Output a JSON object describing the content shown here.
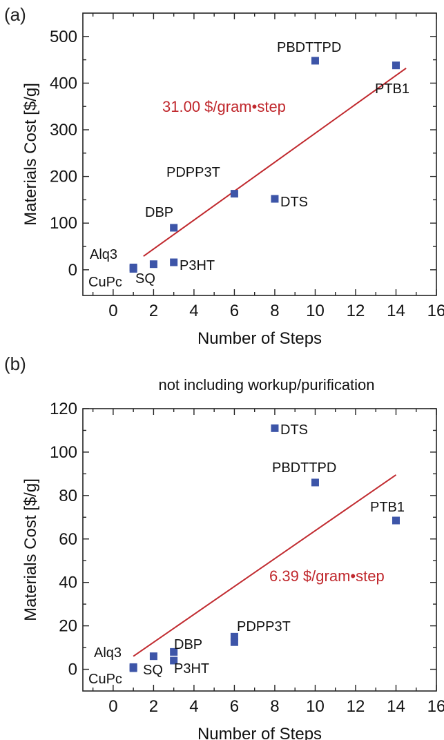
{
  "panels": {
    "a": {
      "label": "(a)"
    },
    "b": {
      "label": "(b)"
    }
  },
  "colors": {
    "marker": "#3d55a8",
    "fit": "#c0282d",
    "axis": "#222222"
  },
  "chart_data": [
    {
      "type": "scatter",
      "panel": "(a)",
      "title": "",
      "xlabel": "Number of Steps",
      "ylabel": "Materials Cost [$/g]",
      "xlim": [
        -1.5,
        16
      ],
      "ylim": [
        -55,
        550
      ],
      "xticks": [
        0,
        2,
        4,
        6,
        8,
        10,
        12,
        14,
        16
      ],
      "yticks": [
        0,
        100,
        200,
        300,
        400,
        500
      ],
      "grid": false,
      "points": [
        {
          "label": "Alq3",
          "x": 1,
          "y": 5
        },
        {
          "label": "CuPc",
          "x": 1,
          "y": 2
        },
        {
          "label": "SQ",
          "x": 2,
          "y": 12
        },
        {
          "label": "P3HT",
          "x": 3,
          "y": 16
        },
        {
          "label": "DBP",
          "x": 3,
          "y": 90
        },
        {
          "label": "PDPP3T",
          "x": 6,
          "y": 163
        },
        {
          "label": "DTS",
          "x": 8,
          "y": 152
        },
        {
          "label": "PBDTTPD",
          "x": 10,
          "y": 448
        },
        {
          "label": "PTB1",
          "x": 14,
          "y": 438
        }
      ],
      "fit": {
        "x": [
          1.5,
          14.5
        ],
        "y": [
          29,
          432
        ]
      },
      "annotation": "31.00 $/gram•step"
    },
    {
      "type": "scatter",
      "panel": "(b)",
      "title": "not including workup/purification",
      "xlabel": "Number of Steps",
      "ylabel": "Materials Cost [$/g]",
      "xlim": [
        -1.5,
        16
      ],
      "ylim": [
        -10,
        120
      ],
      "xticks": [
        0,
        2,
        4,
        6,
        8,
        10,
        12,
        14,
        16
      ],
      "yticks": [
        0,
        20,
        40,
        60,
        80,
        100,
        120
      ],
      "grid": false,
      "points": [
        {
          "label": "Alq3",
          "x": 1,
          "y": 1
        },
        {
          "label": "CuPc",
          "x": 1,
          "y": 0.5
        },
        {
          "label": "SQ",
          "x": 2,
          "y": 6
        },
        {
          "label": "DBP",
          "x": 3,
          "y": 8
        },
        {
          "label": "P3HT",
          "x": 3,
          "y": 4
        },
        {
          "label": "PDPP3T",
          "x": 6,
          "y": 15
        },
        {
          "label": "",
          "x": 6,
          "y": 12.5
        },
        {
          "label": "DTS",
          "x": 8,
          "y": 111
        },
        {
          "label": "PBDTTPD",
          "x": 10,
          "y": 86
        },
        {
          "label": "PTB1",
          "x": 14,
          "y": 68.5
        }
      ],
      "fit": {
        "x": [
          1,
          14
        ],
        "y": [
          6,
          89.5
        ]
      },
      "annotation": "6.39 $/gram•step"
    }
  ]
}
